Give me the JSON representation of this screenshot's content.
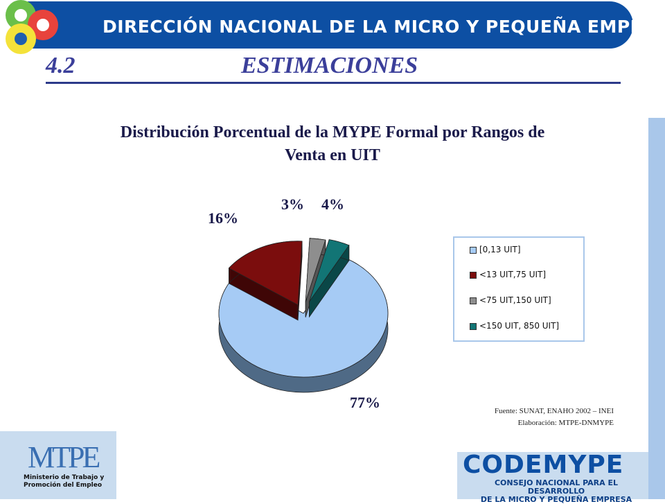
{
  "header": {
    "banner_text": "DIRECCIÓN NACIONAL DE LA MICRO Y PEQUEÑA EMPRESA",
    "section_number": "4.2",
    "section_title": "ESTIMACIONES"
  },
  "chart_data": {
    "type": "pie",
    "title_line1": "Distribución Porcentual de la  MYPE Formal por Rangos de",
    "title_line2": "Venta en UIT",
    "categories": [
      "[0,13 UIT]",
      "<13 UIT,75 UIT]",
      "<75 UIT,150 UIT]",
      "<150 UIT, 850 UIT]"
    ],
    "values": [
      77,
      16,
      3,
      4
    ],
    "labels": [
      "77%",
      "16%",
      "3%",
      "4%"
    ],
    "colors": [
      "#a6cbf5",
      "#7b0d0d",
      "#8e8e8e",
      "#127575"
    ],
    "style": "3d-exploded",
    "legend_position": "right"
  },
  "source": {
    "line1": "Fuente: SUNAT,  ENAHO  2002 – INEI",
    "line2": "Elaboración: MTPE-DNMYPE"
  },
  "footer": {
    "mtpe_logo": "MTPE",
    "mtpe_caption_line1": "Ministerio de Trabajo y",
    "mtpe_caption_line2": "Promoción del Empleo",
    "codemype_title": "CODEMYPE",
    "codemype_sub_line1": "CONSEJO NACIONAL PARA EL DESARROLLO",
    "codemype_sub_line2": "DE LA MICRO Y PEQUEÑA EMPRESA"
  },
  "colors": {
    "banner": "#0d4fa3",
    "heading": "#3b3f9a",
    "accent_light": "#a9c7ea"
  }
}
